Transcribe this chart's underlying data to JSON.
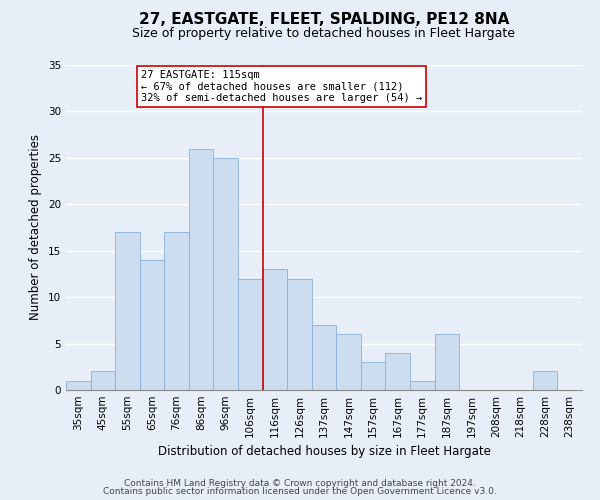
{
  "title": "27, EASTGATE, FLEET, SPALDING, PE12 8NA",
  "subtitle": "Size of property relative to detached houses in Fleet Hargate",
  "xlabel": "Distribution of detached houses by size in Fleet Hargate",
  "ylabel": "Number of detached properties",
  "footer_line1": "Contains HM Land Registry data © Crown copyright and database right 2024.",
  "footer_line2": "Contains public sector information licensed under the Open Government Licence v3.0.",
  "bin_labels": [
    "35sqm",
    "45sqm",
    "55sqm",
    "65sqm",
    "76sqm",
    "86sqm",
    "96sqm",
    "106sqm",
    "116sqm",
    "126sqm",
    "137sqm",
    "147sqm",
    "157sqm",
    "167sqm",
    "177sqm",
    "187sqm",
    "197sqm",
    "208sqm",
    "218sqm",
    "228sqm",
    "238sqm"
  ],
  "bar_values": [
    1,
    2,
    17,
    14,
    17,
    26,
    25,
    12,
    13,
    12,
    7,
    6,
    3,
    4,
    1,
    6,
    0,
    0,
    0,
    2,
    0
  ],
  "bar_color": "#ccddf0",
  "bar_edge_color": "#8ab0d8",
  "vline_color": "#cc0000",
  "annotation_title": "27 EASTGATE: 115sqm",
  "annotation_line1": "← 67% of detached houses are smaller (112)",
  "annotation_line2": "32% of semi-detached houses are larger (54) →",
  "annotation_box_color": "#ffffff",
  "annotation_box_edge": "#cc0000",
  "ylim": [
    0,
    35
  ],
  "yticks": [
    0,
    5,
    10,
    15,
    20,
    25,
    30,
    35
  ],
  "background_color": "#e8eef8",
  "grid_color": "#ffffff",
  "title_fontsize": 11,
  "subtitle_fontsize": 9,
  "axis_label_fontsize": 8.5,
  "tick_fontsize": 7.5,
  "footer_fontsize": 6.5,
  "annotation_fontsize": 7.5
}
